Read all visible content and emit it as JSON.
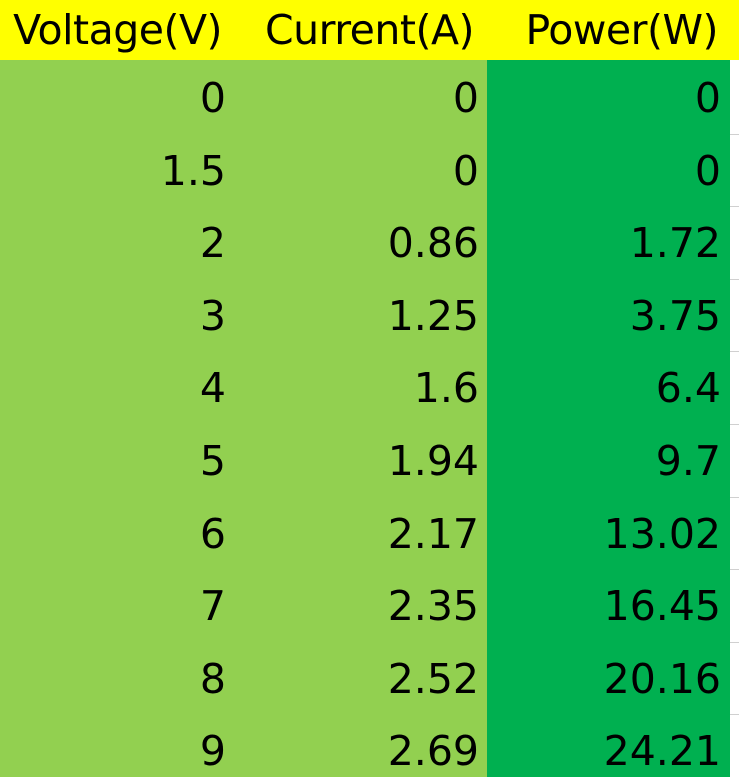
{
  "sheet": {
    "headers": [
      "Voltage(V)",
      "Current(A)",
      "Power(W)"
    ],
    "rows": [
      [
        "0",
        "0",
        "0"
      ],
      [
        "1.5",
        "0",
        "0"
      ],
      [
        "2",
        "0.86",
        "1.72"
      ],
      [
        "3",
        "1.25",
        "3.75"
      ],
      [
        "4",
        "1.6",
        "6.4"
      ],
      [
        "5",
        "1.94",
        "9.7"
      ],
      [
        "6",
        "2.17",
        "13.02"
      ],
      [
        "7",
        "2.35",
        "16.45"
      ],
      [
        "8",
        "2.52",
        "20.16"
      ],
      [
        "9",
        "2.69",
        "24.21"
      ]
    ]
  },
  "colors": {
    "header_fill": "#ffff00",
    "voltage_current_fill": "#92d050",
    "power_fill": "#00b050"
  }
}
